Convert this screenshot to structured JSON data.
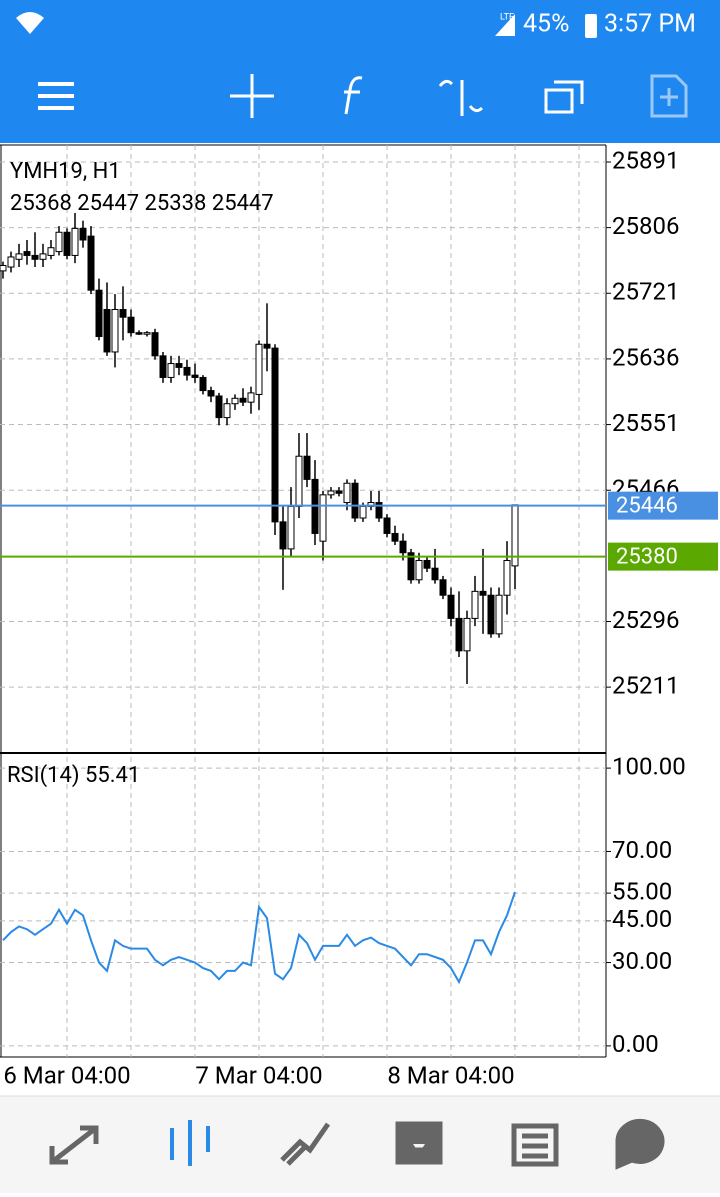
{
  "status_bar": {
    "network": "LTE",
    "battery": "45%",
    "time": "3:57 PM"
  },
  "chart_data": [
    {
      "type": "candlestick",
      "title": "YMH19, H1",
      "subtitle": "25368 25447 25338 25447",
      "categories": [
        null,
        null,
        null,
        null,
        null,
        null,
        null,
        null,
        "6 Mar 04:00",
        null,
        null,
        null,
        null,
        null,
        null,
        null,
        null,
        null,
        null,
        null,
        null,
        null,
        null,
        null,
        null,
        null,
        null,
        null,
        null,
        null,
        null,
        null,
        "7 Mar 04:00",
        null,
        null,
        null,
        null,
        null,
        null,
        null,
        null,
        null,
        null,
        null,
        null,
        null,
        null,
        null,
        null,
        null,
        null,
        null,
        null,
        null,
        null,
        null,
        "8 Mar 04:00",
        null,
        null,
        null,
        null,
        null,
        null,
        null,
        null
      ],
      "open": [
        25750,
        25755,
        25765,
        25775,
        25770,
        25765,
        25770,
        25775,
        25800,
        25770,
        25805,
        25795,
        25725,
        25700,
        25645,
        25700,
        25690,
        25670,
        25668,
        25670,
        25640,
        25612,
        25630,
        25625,
        25615,
        25612,
        25595,
        25588,
        25560,
        25578,
        25585,
        25580,
        25590,
        25655,
        25650,
        25425,
        25390,
        25445,
        25510,
        25480,
        25400,
        25460,
        25465,
        25450,
        25475,
        25430,
        25445,
        25450,
        25430,
        25410,
        25400,
        25385,
        25350,
        25375,
        25365,
        25350,
        25330,
        25300,
        25258,
        25300,
        25335,
        25330,
        25280,
        25330,
        25368
      ],
      "high": [
        25762,
        25775,
        25785,
        25790,
        25800,
        25785,
        25790,
        25808,
        25805,
        25825,
        25815,
        25808,
        25740,
        25735,
        25720,
        25730,
        25700,
        25673,
        25672,
        25675,
        25645,
        25640,
        25640,
        25635,
        25630,
        25615,
        25600,
        25592,
        25585,
        25590,
        25598,
        25600,
        25660,
        25708,
        25655,
        25445,
        25470,
        25540,
        25540,
        25505,
        25465,
        25470,
        25470,
        25480,
        25480,
        25450,
        25465,
        25465,
        25435,
        25420,
        25410,
        25390,
        25385,
        25380,
        25390,
        25355,
        25340,
        25335,
        25310,
        25355,
        25390,
        25340,
        25340,
        25400,
        25447
      ],
      "low": [
        25740,
        25748,
        25755,
        25758,
        25755,
        25755,
        25765,
        25770,
        25765,
        25760,
        25780,
        25720,
        25660,
        25640,
        25625,
        25660,
        25665,
        25667,
        25665,
        25635,
        25605,
        25605,
        25615,
        25608,
        25605,
        25590,
        25580,
        25550,
        25550,
        25570,
        25575,
        25565,
        25570,
        25620,
        25408,
        25337,
        25380,
        25430,
        25470,
        25395,
        25375,
        25455,
        25458,
        25440,
        25425,
        25425,
        25440,
        25425,
        25405,
        25395,
        25375,
        25345,
        25345,
        25360,
        25345,
        25325,
        25290,
        25250,
        25215,
        25290,
        25280,
        25275,
        25275,
        25305,
        25338
      ],
      "close": [
        25757,
        25768,
        25772,
        25770,
        25765,
        25772,
        25780,
        25800,
        25770,
        25805,
        25790,
        25725,
        25665,
        25645,
        25700,
        25690,
        25670,
        25668,
        25670,
        25640,
        25612,
        25630,
        25625,
        25615,
        25612,
        25595,
        25588,
        25560,
        25578,
        25585,
        25580,
        25592,
        25655,
        25650,
        25425,
        25390,
        25445,
        25510,
        25480,
        25410,
        25460,
        25465,
        25462,
        25475,
        25430,
        25445,
        25450,
        25430,
        25410,
        25400,
        25385,
        25350,
        25375,
        25365,
        25350,
        25330,
        25300,
        25258,
        25300,
        25335,
        25330,
        25280,
        25330,
        25375,
        25447
      ],
      "up_color": "#ffffff",
      "down_color": "#000000",
      "wick_color": "#000000",
      "price_lines": [
        {
          "value": 25446,
          "color": "#4a90e2"
        },
        {
          "value": 25380,
          "color": "#5aa800"
        }
      ],
      "ylim": [
        25127,
        25913
      ],
      "yticks": [
        25211,
        25296,
        25466,
        25551,
        25636,
        25721,
        25806,
        25891
      ],
      "grid": true
    },
    {
      "type": "line",
      "title": "RSI(14) 55.41",
      "color": "#2a8ae6",
      "values": [
        38,
        41,
        43,
        42,
        40,
        42,
        44,
        49,
        44,
        49,
        47,
        38,
        30,
        27,
        38,
        36,
        35,
        35,
        35,
        31,
        29,
        31,
        32,
        31,
        30,
        28,
        27,
        24,
        27,
        27,
        30,
        29,
        50,
        46,
        26,
        24,
        28,
        40,
        37,
        31,
        36,
        36,
        36,
        40,
        36,
        38,
        39,
        37,
        36,
        35,
        32,
        29,
        33,
        33,
        32,
        31,
        28,
        23,
        30,
        38,
        38,
        33,
        41,
        47,
        55.41
      ],
      "ylim": [
        -4,
        104
      ],
      "yticks": [
        {
          "value": 0,
          "label": "0.00"
        },
        {
          "value": 30,
          "label": "30.00"
        },
        {
          "value": 45,
          "label": "45.00"
        },
        {
          "value": 55,
          "label": "55.00"
        },
        {
          "value": 70,
          "label": "70.00"
        },
        {
          "value": 100,
          "label": "100.00"
        }
      ],
      "grid": true
    }
  ]
}
